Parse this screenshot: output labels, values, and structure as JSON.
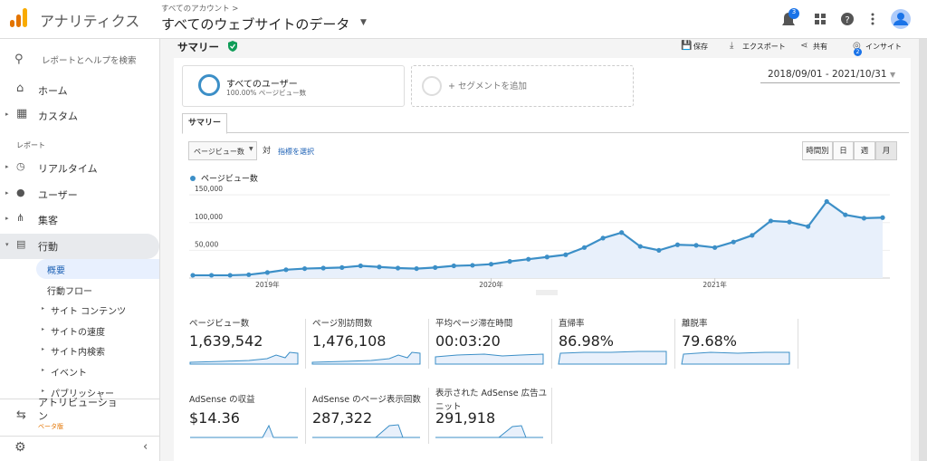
{
  "header": {
    "logo_text": "アナリティクス",
    "breadcrumb": "すべてのアカウント >",
    "property": "すべてのウェブサイトのデータ",
    "notifications": "3"
  },
  "sidebar": {
    "search": "レポートとヘルプを検索",
    "top_items": [
      "ホーム",
      "カスタム"
    ],
    "section": "レポート",
    "items": [
      "リアルタイム",
      "ユーザー",
      "集客",
      "行動"
    ],
    "sub_items": [
      "概要",
      "行動フロー",
      "サイト コンテンツ",
      "サイトの速度",
      "サイト内検索",
      "イベント",
      "パブリッシャー"
    ],
    "attribution": "アトリビューション",
    "beta": "ベータ版"
  },
  "toolbar": {
    "title": "サマリー",
    "actions": [
      "保存",
      "エクスポート",
      "共有",
      "インサイト"
    ],
    "insight_badge": "2"
  },
  "segments": {
    "name": "すべてのユーザー",
    "sub": "100.00% ページビュー数",
    "add": "+ セグメントを追加"
  },
  "date_range": "2018/09/01 - 2021/10/31",
  "tab": "サマリー",
  "controls": {
    "metric": "ページビュー数",
    "vs": "対",
    "select_metric": "指標を選択",
    "granularity": [
      "時間別",
      "日",
      "週",
      "月"
    ]
  },
  "chart_data": {
    "type": "line",
    "categories": [
      null,
      null,
      null,
      null,
      "2019年",
      null,
      null,
      null,
      null,
      null,
      null,
      null,
      null,
      null,
      null,
      null,
      "2020年",
      null,
      null,
      null,
      null,
      null,
      null,
      null,
      null,
      null,
      null,
      null,
      "2021年",
      null,
      null,
      null,
      null,
      null,
      null,
      null,
      null,
      null
    ],
    "series": [
      {
        "name": "ページビュー数",
        "color": "#3c8fc7",
        "values": [
          5000,
          5000,
          5000,
          6000,
          10000,
          15000,
          17000,
          18000,
          19000,
          22000,
          20000,
          18000,
          17000,
          19000,
          22000,
          23000,
          25000,
          30000,
          34000,
          38000,
          42000,
          55000,
          72000,
          82000,
          57000,
          50000,
          60000,
          59000,
          55000,
          65000,
          77000,
          103000,
          101000,
          93000,
          138000,
          114000,
          108000,
          109000
        ]
      }
    ],
    "ylim": [
      0,
      160000
    ],
    "yticks": [
      {
        "value": 50000,
        "label": "50,000"
      },
      {
        "value": 100000,
        "label": "100,000"
      },
      {
        "value": 150000,
        "label": "150,000"
      }
    ],
    "grid": true
  },
  "metrics": [
    {
      "label": "ページビュー数",
      "value": "1,639,542"
    },
    {
      "label": "ページ別訪問数",
      "value": "1,476,108"
    },
    {
      "label": "平均ページ滞在時間",
      "value": "00:03:20"
    },
    {
      "label": "直帰率",
      "value": "86.98%"
    },
    {
      "label": "離脱率",
      "value": "79.68%"
    },
    {
      "label": "AdSense の収益",
      "value": "$14.36"
    },
    {
      "label": "AdSense のページ表示回数",
      "value": "287,322"
    },
    {
      "label": "表示された AdSense 広告ユニット",
      "value": "291,918"
    }
  ]
}
